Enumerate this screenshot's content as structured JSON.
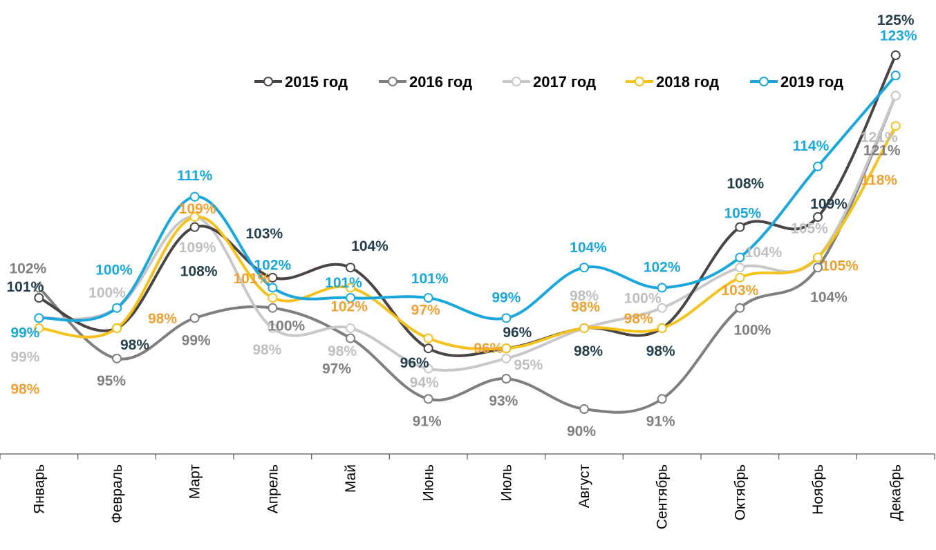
{
  "chart_data": {
    "type": "line",
    "title": "",
    "xlabel": "",
    "ylabel": "",
    "ylim": [
      84,
      130
    ],
    "grid": false,
    "legend_position": "top-right",
    "categories": [
      "Январь",
      "Февраль",
      "Март",
      "Апрель",
      "Май",
      "Июнь",
      "Июль",
      "Август",
      "Сентябрь",
      "Октябрь",
      "Ноябрь",
      "Декабрь"
    ],
    "series": [
      {
        "name": "2015 год",
        "color": "#4a4444",
        "label_color": "#243e4d",
        "values": [
          101,
          98,
          108,
          103,
          104,
          96,
          96,
          98,
          98,
          108,
          109,
          125
        ],
        "labels": [
          "101%",
          "98%",
          "108%",
          "103%",
          "104%",
          "96%",
          "96%",
          "98%",
          "98%",
          "108%",
          "109%",
          "125%"
        ]
      },
      {
        "name": "2016 год",
        "color": "#7f7f7f",
        "label_color": "#7f7f7f",
        "values": [
          102,
          95,
          99,
          100,
          97,
          91,
          93,
          90,
          91,
          100,
          104,
          121
        ],
        "labels": [
          "102%",
          "95%",
          "99%",
          "100%",
          "97%",
          "91%",
          "93%",
          "90%",
          "91%",
          "100%",
          "104%",
          "121%"
        ]
      },
      {
        "name": "2017 год",
        "color": "#c8c8c8",
        "label_color": "#bfbfbf",
        "values": [
          99,
          100,
          109,
          98,
          98,
          94,
          95,
          98,
          100,
          104,
          105,
          121
        ],
        "labels": [
          "99%",
          "100%",
          "109%",
          "98%",
          "98%",
          "94%",
          "95%",
          "98%",
          "100%",
          "104%",
          "105%",
          "121%"
        ]
      },
      {
        "name": "2018 год",
        "color": "#f5c21c",
        "label_color": "#f0a030",
        "values": [
          98,
          98,
          109,
          101,
          102,
          97,
          96,
          98,
          98,
          103,
          105,
          118
        ],
        "labels": [
          "98%",
          "98%",
          "109%",
          "101%",
          "102%",
          "97%",
          "96%",
          "98%",
          "98%",
          "103%",
          "105%",
          "118%"
        ]
      },
      {
        "name": "2019 год",
        "color": "#1aa7dc",
        "label_color": "#1aa7dc",
        "values": [
          99,
          100,
          111,
          102,
          101,
          101,
          99,
          104,
          102,
          105,
          114,
          123
        ],
        "labels": [
          "99%",
          "100%",
          "111%",
          "102%",
          "101%",
          "101%",
          "99%",
          "104%",
          "102%",
          "105%",
          "114%",
          "123%"
        ]
      }
    ]
  }
}
